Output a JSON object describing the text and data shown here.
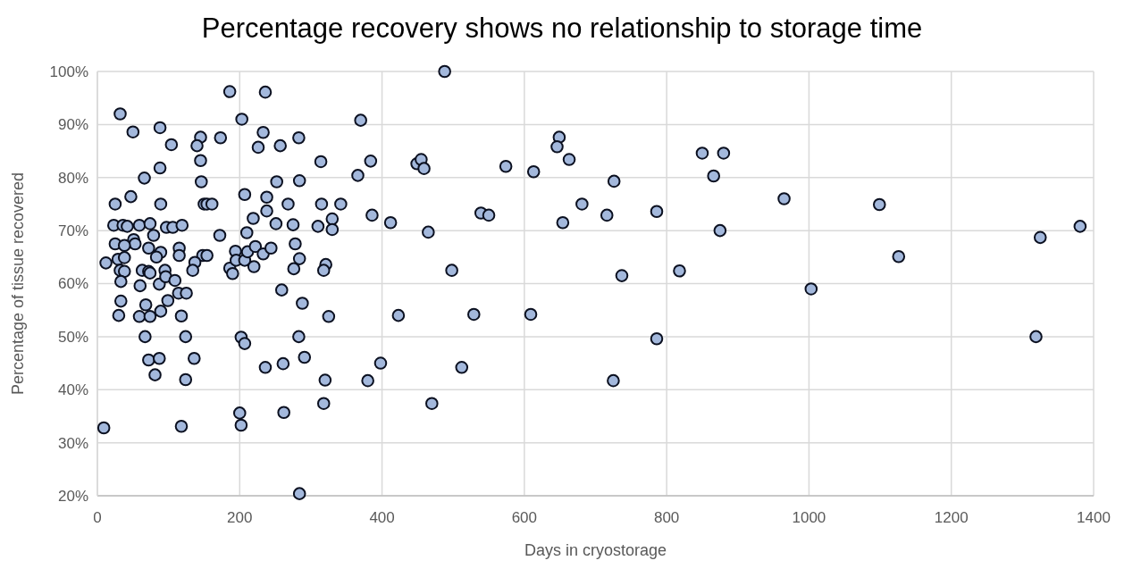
{
  "chart_data": {
    "type": "scatter",
    "title": "Percentage recovery shows no relationship to storage time",
    "xlabel": "Days in cryostorage",
    "ylabel": "Percentage of tissue recovered",
    "xlim": [
      0,
      1400
    ],
    "xticks": [
      0,
      200,
      400,
      600,
      800,
      1000,
      1200,
      1400
    ],
    "ylim": [
      20,
      100
    ],
    "yticks": [
      {
        "value": 20,
        "label": "20%"
      },
      {
        "value": 30,
        "label": "30%"
      },
      {
        "value": 40,
        "label": "40%"
      },
      {
        "value": 50,
        "label": "50%"
      },
      {
        "value": 60,
        "label": "60%"
      },
      {
        "value": 70,
        "label": "70%"
      },
      {
        "value": 80,
        "label": "80%"
      },
      {
        "value": 90,
        "label": "90%"
      },
      {
        "value": 100,
        "label": "100%"
      }
    ],
    "grid": true,
    "marker": "circle",
    "series": [
      {
        "color": "#a3b8dc",
        "x": [
          186,
          203,
          32,
          50,
          88,
          104,
          145,
          140,
          173,
          145,
          88,
          66,
          146,
          47,
          25,
          89,
          150,
          154,
          161,
          23,
          36,
          42,
          59,
          74,
          97,
          106,
          119,
          51,
          53,
          25,
          38,
          79,
          115,
          115,
          172,
          72,
          89,
          83,
          148,
          154,
          137,
          12,
          29,
          38,
          32,
          38,
          63,
          72,
          74,
          95,
          134,
          33,
          60,
          87,
          96,
          109,
          186,
          190,
          114,
          125,
          99,
          33,
          68,
          30,
          59,
          74,
          89,
          118,
          67,
          124,
          72,
          87,
          136,
          81,
          124,
          9,
          118,
          200,
          202,
          202,
          207,
          236,
          233,
          283,
          226,
          257,
          314,
          252,
          284,
          207,
          238,
          238,
          268,
          315,
          219,
          251,
          275,
          310,
          330,
          330,
          210,
          278,
          194,
          195,
          207,
          211,
          222,
          233,
          244,
          284,
          220,
          276,
          321,
          318,
          259,
          288,
          325,
          283,
          291,
          236,
          261,
          320,
          318,
          262,
          284,
          488,
          370,
          384,
          366,
          449,
          455,
          459,
          574,
          613,
          649,
          646,
          663,
          726,
          342,
          386,
          412,
          539,
          550,
          465,
          681,
          716,
          654,
          498,
          737,
          423,
          529,
          609,
          398,
          380,
          512,
          725,
          470,
          850,
          880,
          866,
          786,
          965,
          1099,
          875,
          1325,
          1381,
          1126,
          818,
          1003,
          786,
          1319
        ],
        "values": [
          96.2,
          91.0,
          92.0,
          88.6,
          89.4,
          86.2,
          87.6,
          86.0,
          87.5,
          83.2,
          81.8,
          79.9,
          79.2,
          76.4,
          75.0,
          75.0,
          75.0,
          75.0,
          75.0,
          71.0,
          71.0,
          70.8,
          71.0,
          71.3,
          70.6,
          70.6,
          71.0,
          68.3,
          67.5,
          67.5,
          67.2,
          69.1,
          66.7,
          65.3,
          69.1,
          66.7,
          65.9,
          65.0,
          65.3,
          65.3,
          64.0,
          63.9,
          64.6,
          64.9,
          62.5,
          62.3,
          62.5,
          62.3,
          62.0,
          62.5,
          62.5,
          60.4,
          59.6,
          59.9,
          61.3,
          60.6,
          62.9,
          61.9,
          58.2,
          58.2,
          56.8,
          56.7,
          56.0,
          54.0,
          53.8,
          53.8,
          54.8,
          53.9,
          50.0,
          50.0,
          45.6,
          45.9,
          45.9,
          42.8,
          41.9,
          32.8,
          33.1,
          35.6,
          33.3,
          49.9,
          48.7,
          96.1,
          88.5,
          87.5,
          85.7,
          86.0,
          83.0,
          79.2,
          79.4,
          76.8,
          76.3,
          73.7,
          75.0,
          75.0,
          72.3,
          71.3,
          71.1,
          70.8,
          72.2,
          70.2,
          69.6,
          67.5,
          66.1,
          64.4,
          64.4,
          66.0,
          67.0,
          65.6,
          66.7,
          64.7,
          63.2,
          62.8,
          63.6,
          62.5,
          58.8,
          56.3,
          53.8,
          50.0,
          46.1,
          44.2,
          44.9,
          41.8,
          37.4,
          35.7,
          20.4,
          100,
          90.8,
          83.1,
          80.4,
          82.6,
          83.4,
          81.7,
          82.1,
          81.1,
          87.6,
          85.8,
          83.4,
          79.3,
          75.0,
          72.9,
          71.5,
          73.3,
          72.9,
          69.7,
          75.0,
          72.9,
          71.5,
          62.5,
          61.5,
          54.0,
          54.2,
          54.2,
          45.0,
          41.7,
          44.2,
          41.7,
          37.4,
          84.6,
          84.6,
          80.3,
          73.6,
          76.0,
          74.9,
          70.0,
          68.7,
          70.8,
          65.1,
          62.4,
          59.0,
          49.6,
          50.0
        ]
      }
    ]
  }
}
